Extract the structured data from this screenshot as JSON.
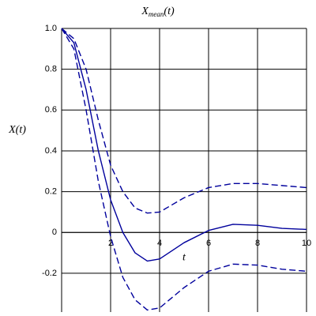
{
  "chart_data": {
    "type": "line",
    "title": {
      "base": "X",
      "sub": "mean",
      "rest": "(t)"
    },
    "x_label": "t",
    "y_label": "X(t)",
    "x": [
      0,
      0.5,
      1,
      1.5,
      2,
      2.5,
      3,
      3.5,
      4,
      5,
      6,
      7,
      8,
      9,
      10
    ],
    "series": [
      {
        "color": "#00009c",
        "dash": "none",
        "values": [
          1.0,
          0.93,
          0.7,
          0.4,
          0.16,
          0.0,
          -0.1,
          -0.14,
          -0.13,
          -0.05,
          0.01,
          0.04,
          0.035,
          0.02,
          0.015
        ]
      },
      {
        "color": "#00009c",
        "dash": "8 4",
        "values": [
          1.0,
          0.95,
          0.8,
          0.55,
          0.33,
          0.2,
          0.12,
          0.095,
          0.1,
          0.17,
          0.22,
          0.24,
          0.24,
          0.23,
          0.22
        ]
      },
      {
        "color": "#00009c",
        "dash": "8 4",
        "values": [
          1.0,
          0.9,
          0.6,
          0.25,
          -0.02,
          -0.22,
          -0.33,
          -0.38,
          -0.37,
          -0.27,
          -0.19,
          -0.155,
          -0.16,
          -0.18,
          -0.19
        ]
      }
    ],
    "xlim": [
      0,
      10
    ],
    "ylim": [
      -0.39,
      1.0
    ],
    "xticks": [
      2,
      4,
      6,
      8,
      10
    ],
    "yticks": [
      {
        "value": 1,
        "label": "1.0"
      },
      0.8,
      0.6,
      0.4,
      0.2,
      0,
      -0.2
    ],
    "grid": true
  }
}
